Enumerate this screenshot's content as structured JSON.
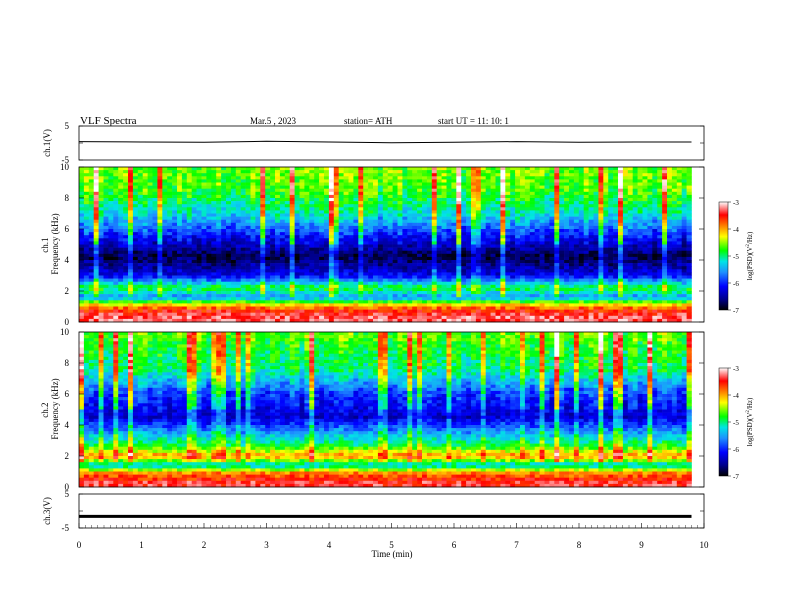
{
  "header": {
    "title": "VLF  Spectra",
    "date": "Mar.5  , 2023",
    "station": "station= ATH",
    "start": "start  UT  =    11: 10: 1"
  },
  "chart_data": [
    {
      "type": "line",
      "panel": "ch1-waveform",
      "ylabel": "ch.1(V)",
      "ylim": [
        -5,
        5
      ],
      "yticks": [
        "5",
        "-5"
      ],
      "x": [
        0,
        1,
        2,
        3,
        4,
        5,
        6,
        7,
        8,
        9,
        9.8
      ],
      "values": [
        0.4,
        0.3,
        0.2,
        0.5,
        0.3,
        0.1,
        0.2,
        0.4,
        0.2,
        0.3,
        0.3
      ]
    },
    {
      "type": "heatmap",
      "panel": "ch1-spectrogram",
      "ylabel": "ch.1\nFrequency  (kHz)",
      "ylim": [
        0,
        10
      ],
      "yticks": [
        "0",
        "2",
        "4",
        "6",
        "8",
        "10"
      ],
      "xlim": [
        0,
        10
      ],
      "colorbar": {
        "label": "log(PSD)(V²/Hz)",
        "range": [
          -7,
          -3
        ],
        "ticks": [
          "-3",
          "-4",
          "-5",
          "-6",
          "-7"
        ]
      },
      "intensity_profile": [
        {
          "f": 0.3,
          "v": -3.3
        },
        {
          "f": 0.8,
          "v": -3.6
        },
        {
          "f": 1.2,
          "v": -4.4
        },
        {
          "f": 1.6,
          "v": -5.6
        },
        {
          "f": 2.2,
          "v": -4.8
        },
        {
          "f": 3.0,
          "v": -6.2
        },
        {
          "f": 4.2,
          "v": -6.8
        },
        {
          "f": 5.5,
          "v": -6.1
        },
        {
          "f": 7.0,
          "v": -5.2
        },
        {
          "f": 8.5,
          "v": -4.7
        },
        {
          "f": 9.7,
          "v": -4.6
        }
      ]
    },
    {
      "type": "heatmap",
      "panel": "ch2-spectrogram",
      "ylabel": "ch.2\nFrequency  (kHz)",
      "ylim": [
        0,
        10
      ],
      "yticks": [
        "0",
        "2",
        "4",
        "6",
        "8",
        "10"
      ],
      "xlim": [
        0,
        10
      ],
      "colorbar": {
        "label": "log(PSD)(V²/Hz)",
        "range": [
          -7,
          -3
        ],
        "ticks": [
          "-3",
          "-4",
          "-5",
          "-6",
          "-7"
        ]
      },
      "intensity_profile": [
        {
          "f": 0.3,
          "v": -3.4
        },
        {
          "f": 0.9,
          "v": -3.9
        },
        {
          "f": 1.4,
          "v": -5.3
        },
        {
          "f": 2.0,
          "v": -3.9
        },
        {
          "f": 2.6,
          "v": -4.8
        },
        {
          "f": 3.5,
          "v": -5.5
        },
        {
          "f": 4.5,
          "v": -6.3
        },
        {
          "f": 6.0,
          "v": -5.9
        },
        {
          "f": 7.5,
          "v": -5.0
        },
        {
          "f": 9.0,
          "v": -4.8
        },
        {
          "f": 9.8,
          "v": -4.6
        }
      ]
    },
    {
      "type": "line",
      "panel": "ch3-waveform",
      "ylabel": "ch.3(V)",
      "ylim": [
        -5,
        5
      ],
      "yticks": [
        "5",
        "-5"
      ],
      "x": [
        0,
        9.8
      ],
      "values": [
        -1.6,
        -1.6
      ]
    }
  ],
  "xaxis": {
    "label": "Time  (min)",
    "ticks": [
      "0",
      "1",
      "2",
      "3",
      "4",
      "5",
      "6",
      "7",
      "8",
      "9",
      "10"
    ],
    "range": [
      0,
      10
    ],
    "data_end": 9.8
  },
  "colors": {
    "colormap": [
      "#000000",
      "#00008b",
      "#0000ff",
      "#1e90ff",
      "#00e5e5",
      "#00ff00",
      "#ffff00",
      "#ff8000",
      "#ff0000",
      "#ffffff"
    ],
    "waveform": "#000000"
  }
}
